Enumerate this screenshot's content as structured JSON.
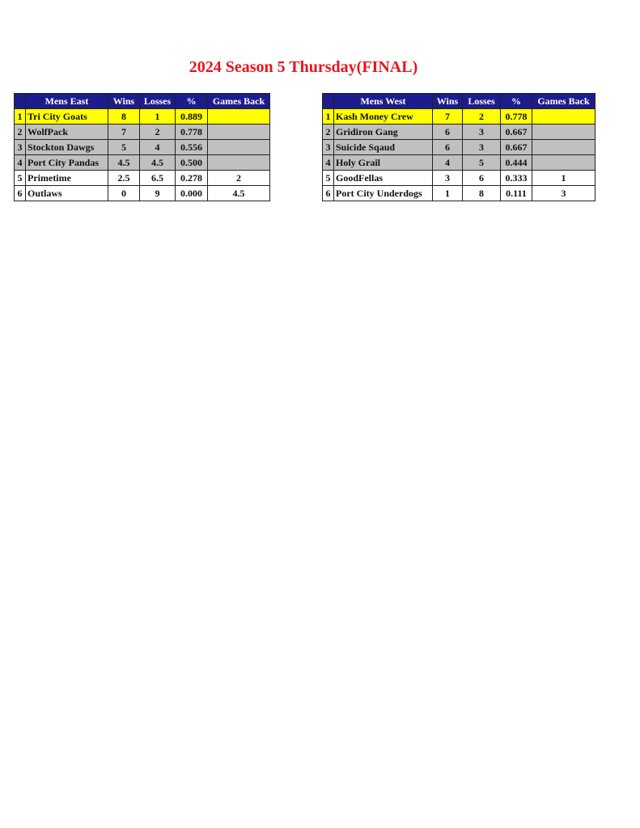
{
  "title": "2024 Season 5 Thursday(FINAL)",
  "colors": {
    "title": "#e8141c",
    "header": "#1c1c8c",
    "leader": "#ffff00",
    "playoff": "#c0c0c0"
  },
  "tables": [
    {
      "headers": [
        "",
        "Mens East",
        "Wins",
        "Losses",
        "%",
        "Games Back"
      ],
      "rows": [
        [
          "1",
          "Tri City Goats",
          "8",
          "1",
          "0.889",
          ""
        ],
        [
          "2",
          "WolfPack",
          "7",
          "2",
          "0.778",
          ""
        ],
        [
          "3",
          "Stockton Dawgs",
          "5",
          "4",
          "0.556",
          ""
        ],
        [
          "4",
          "Port City Pandas",
          "4.5",
          "4.5",
          "0.500",
          ""
        ],
        [
          "5",
          "Primetime",
          "2.5",
          "6.5",
          "0.278",
          "2"
        ],
        [
          "6",
          "Outlaws",
          "0",
          "9",
          "0.000",
          "4.5"
        ]
      ]
    },
    {
      "headers": [
        "",
        "Mens West",
        "Wins",
        "Losses",
        "%",
        "Games Back"
      ],
      "rows": [
        [
          "1",
          "Kash Money Crew",
          "7",
          "2",
          "0.778",
          ""
        ],
        [
          "2",
          "Gridiron Gang",
          "6",
          "3",
          "0.667",
          ""
        ],
        [
          "3",
          "Suicide Sqaud",
          "6",
          "3",
          "0.667",
          ""
        ],
        [
          "4",
          "Holy Grail",
          "4",
          "5",
          "0.444",
          ""
        ],
        [
          "5",
          "GoodFellas",
          "3",
          "6",
          "0.333",
          "1"
        ],
        [
          "6",
          "Port City Underdogs",
          "1",
          "8",
          "0.111",
          "3"
        ]
      ]
    }
  ]
}
